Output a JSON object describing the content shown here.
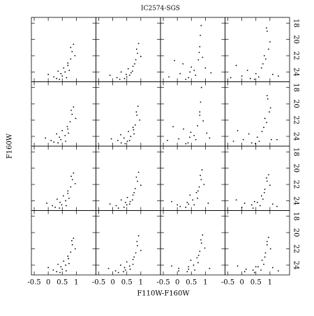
{
  "figure": {
    "title": "IC2574-SGS",
    "x_label": "F110W-F160W",
    "y_label": "F160W"
  },
  "chart_data": [
    {
      "type": "scatter",
      "xlim": [
        -0.6,
        1.7
      ],
      "ylim": [
        17.3,
        25.2
      ],
      "xticks": [
        -0.5,
        0,
        0.5,
        1
      ],
      "yticks": [
        18,
        20,
        22,
        24
      ],
      "color": "#000000",
      "x": [
        0.3,
        0.5,
        0.6,
        0.7,
        0.8,
        0.85,
        0.9,
        0.75,
        0.4,
        0.2,
        0.0,
        0.65,
        0.55,
        0.95,
        0.7,
        0.45,
        0.8,
        0.35
      ],
      "y": [
        24.8,
        24.5,
        24.0,
        23.2,
        22.4,
        21.5,
        20.6,
        23.8,
        24.9,
        24.6,
        24.3,
        24.7,
        23.5,
        22.0,
        22.9,
        24.2,
        21.0,
        23.9
      ]
    },
    {
      "type": "scatter",
      "xlim": [
        -0.6,
        1.7
      ],
      "ylim": [
        17.3,
        25.2
      ],
      "xticks": [
        -0.5,
        0,
        0.5,
        1
      ],
      "yticks": [
        18,
        20,
        22,
        24
      ],
      "color": "#000000",
      "x": [
        0.25,
        0.5,
        0.65,
        0.72,
        0.82,
        0.88,
        0.92,
        0.7,
        0.42,
        0.15,
        -0.1,
        0.6,
        0.55,
        1.0,
        0.78,
        0.48,
        0.85,
        0.3
      ],
      "y": [
        24.9,
        24.6,
        24.1,
        23.3,
        22.5,
        21.7,
        20.5,
        23.9,
        24.8,
        24.7,
        24.4,
        24.4,
        23.6,
        22.1,
        23.0,
        24.3,
        21.2,
        24.0
      ]
    },
    {
      "type": "scatter",
      "xlim": [
        -0.6,
        1.7
      ],
      "ylim": [
        17.3,
        25.2
      ],
      "xticks": [
        -0.5,
        0,
        0.5,
        1
      ],
      "yticks": [
        18,
        20,
        22,
        24
      ],
      "color": "#000000",
      "x": [
        -0.3,
        0.1,
        0.4,
        0.6,
        0.75,
        0.8,
        0.82,
        0.85,
        0.5,
        0.2,
        -0.1,
        0.65,
        0.3,
        1.0,
        0.9,
        0.45,
        0.78,
        1.2
      ],
      "y": [
        24.6,
        24.2,
        24.7,
        23.8,
        22.5,
        20.9,
        19.5,
        18.3,
        23.4,
        23.0,
        22.6,
        24.4,
        24.9,
        23.5,
        22.2,
        24.0,
        21.6,
        24.1
      ]
    },
    {
      "type": "scatter",
      "xlim": [
        -0.6,
        1.7
      ],
      "ylim": [
        17.3,
        25.2
      ],
      "xticks": [
        -0.5,
        0,
        0.5,
        1
      ],
      "yticks": [
        18,
        20,
        22,
        24
      ],
      "color": "#000000",
      "x": [
        -0.4,
        0.0,
        0.3,
        0.5,
        0.7,
        0.85,
        0.95,
        0.9,
        0.6,
        0.2,
        -0.2,
        0.75,
        1.1,
        1.0,
        0.8,
        0.45,
        0.88,
        1.3
      ],
      "y": [
        24.7,
        24.5,
        24.8,
        24.2,
        23.5,
        22.4,
        21.2,
        19.0,
        24.6,
        23.8,
        23.2,
        23.0,
        24.3,
        20.3,
        22.0,
        24.9,
        18.6,
        24.5
      ]
    },
    {
      "type": "scatter",
      "xlim": [
        -0.6,
        1.7
      ],
      "ylim": [
        17.3,
        25.2
      ],
      "xticks": [
        -0.5,
        0,
        0.5,
        1
      ],
      "yticks": [
        18,
        20,
        22,
        24
      ],
      "color": "#000000",
      "x": [
        0.2,
        0.45,
        0.6,
        0.7,
        0.78,
        0.85,
        0.9,
        0.72,
        0.35,
        0.1,
        -0.1,
        0.62,
        0.5,
        0.98,
        0.68,
        0.4,
        0.82,
        0.3
      ],
      "y": [
        24.7,
        24.4,
        23.9,
        23.1,
        22.2,
        21.3,
        20.4,
        23.6,
        24.8,
        24.5,
        24.2,
        24.6,
        23.3,
        21.8,
        22.8,
        24.1,
        20.8,
        23.7
      ]
    },
    {
      "type": "scatter",
      "xlim": [
        -0.6,
        1.7
      ],
      "ylim": [
        17.3,
        25.2
      ],
      "xticks": [
        -0.5,
        0,
        0.5,
        1
      ],
      "yticks": [
        18,
        20,
        22,
        24
      ],
      "color": "#000000",
      "x": [
        0.3,
        0.52,
        0.64,
        0.74,
        0.8,
        0.86,
        0.9,
        0.76,
        0.44,
        0.18,
        -0.05,
        0.6,
        0.56,
        0.96,
        0.72,
        0.4,
        0.84,
        0.28
      ],
      "y": [
        24.8,
        24.6,
        24.0,
        23.2,
        22.6,
        21.4,
        20.3,
        23.7,
        24.9,
        24.5,
        24.3,
        24.5,
        23.4,
        22.0,
        22.9,
        24.2,
        21.0,
        23.8
      ]
    },
    {
      "type": "scatter",
      "xlim": [
        -0.6,
        1.7
      ],
      "ylim": [
        17.3,
        25.2
      ],
      "xticks": [
        -0.5,
        0,
        0.5,
        1
      ],
      "yticks": [
        18,
        20,
        22,
        24
      ],
      "color": "#000000",
      "x": [
        -0.35,
        0.05,
        0.38,
        0.6,
        0.72,
        0.8,
        0.83,
        0.86,
        0.48,
        0.22,
        -0.15,
        0.66,
        0.3,
        1.05,
        0.92,
        0.44,
        0.8,
        1.15
      ],
      "y": [
        24.5,
        24.3,
        24.8,
        23.9,
        22.7,
        21.0,
        19.8,
        18.0,
        23.5,
        23.1,
        22.8,
        24.4,
        24.9,
        23.6,
        22.1,
        24.1,
        21.4,
        24.2
      ]
    },
    {
      "type": "scatter",
      "xlim": [
        -0.6,
        1.7
      ],
      "ylim": [
        17.3,
        25.2
      ],
      "xticks": [
        -0.5,
        0,
        0.5,
        1
      ],
      "yticks": [
        18,
        20,
        22,
        24
      ],
      "color": "#000000",
      "x": [
        -0.3,
        0.05,
        0.35,
        0.55,
        0.72,
        0.88,
        0.98,
        0.92,
        0.62,
        0.25,
        -0.15,
        0.78,
        1.05,
        1.02,
        0.82,
        0.48,
        0.9,
        1.25
      ],
      "y": [
        24.6,
        24.4,
        24.8,
        24.1,
        23.4,
        22.3,
        21.0,
        19.4,
        24.6,
        23.7,
        23.3,
        22.9,
        24.4,
        20.5,
        21.8,
        24.9,
        19.0,
        24.4
      ]
    },
    {
      "type": "scatter",
      "xlim": [
        -0.6,
        1.7
      ],
      "ylim": [
        17.3,
        25.2
      ],
      "xticks": [
        -0.5,
        0,
        0.5,
        1
      ],
      "yticks": [
        18,
        20,
        22,
        24
      ],
      "color": "#000000",
      "x": [
        0.25,
        0.48,
        0.62,
        0.7,
        0.8,
        0.86,
        0.9,
        0.74,
        0.4,
        0.15,
        -0.05,
        0.64,
        0.54,
        0.96,
        0.7,
        0.42,
        0.82,
        0.32
      ],
      "y": [
        24.8,
        24.5,
        24.0,
        23.1,
        22.3,
        21.4,
        20.6,
        23.7,
        24.9,
        24.6,
        24.3,
        24.6,
        23.4,
        21.9,
        22.8,
        24.2,
        21.0,
        23.8
      ]
    },
    {
      "type": "scatter",
      "xlim": [
        -0.6,
        1.7
      ],
      "ylim": [
        17.3,
        25.2
      ],
      "xticks": [
        -0.5,
        0,
        0.5,
        1
      ],
      "yticks": [
        18,
        20,
        22,
        24
      ],
      "color": "#000000",
      "x": [
        0.2,
        0.5,
        0.62,
        0.72,
        0.8,
        0.88,
        0.92,
        0.7,
        0.4,
        0.12,
        -0.1,
        0.6,
        0.52,
        1.0,
        0.76,
        0.45,
        0.84,
        0.3
      ],
      "y": [
        24.9,
        24.5,
        24.1,
        23.3,
        22.5,
        21.6,
        20.5,
        23.9,
        24.8,
        24.6,
        24.4,
        24.4,
        23.6,
        22.1,
        23.0,
        24.2,
        21.1,
        23.9
      ]
    },
    {
      "type": "scatter",
      "xlim": [
        -0.6,
        1.7
      ],
      "ylim": [
        17.3,
        25.2
      ],
      "xticks": [
        -0.5,
        0,
        0.5,
        1
      ],
      "yticks": [
        18,
        20,
        22,
        24
      ],
      "color": "#000000",
      "x": [
        0.1,
        0.4,
        0.55,
        0.68,
        0.78,
        0.85,
        0.88,
        0.72,
        0.3,
        0.0,
        -0.2,
        0.6,
        0.45,
        0.95,
        0.74,
        0.35,
        0.82,
        1.1
      ],
      "y": [
        24.7,
        24.4,
        23.9,
        23.0,
        22.3,
        21.4,
        20.2,
        23.7,
        24.8,
        24.5,
        24.1,
        24.5,
        23.3,
        22.0,
        22.8,
        24.2,
        20.9,
        24.3
      ]
    },
    {
      "type": "scatter",
      "xlim": [
        -0.6,
        1.7
      ],
      "ylim": [
        17.3,
        25.2
      ],
      "xticks": [
        -0.5,
        0,
        0.5,
        1
      ],
      "yticks": [
        18,
        20,
        22,
        24
      ],
      "color": "#000000",
      "x": [
        0.0,
        0.35,
        0.55,
        0.7,
        0.82,
        0.9,
        0.95,
        0.75,
        0.4,
        0.1,
        -0.2,
        0.65,
        1.1,
        1.0,
        0.8,
        0.45,
        0.88,
        1.25
      ],
      "y": [
        24.8,
        24.5,
        24.2,
        23.4,
        22.6,
        21.6,
        20.8,
        23.8,
        24.9,
        24.3,
        23.9,
        24.6,
        24.4,
        22.1,
        23.0,
        24.1,
        21.2,
        24.7
      ]
    },
    {
      "type": "scatter",
      "xlim": [
        -0.6,
        1.7
      ],
      "ylim": [
        17.3,
        25.2
      ],
      "xticks": [
        -0.5,
        0,
        0.5,
        1
      ],
      "yticks": [
        18,
        20,
        22,
        24
      ],
      "color": "#000000",
      "x": [
        0.3,
        0.5,
        0.62,
        0.72,
        0.8,
        0.86,
        0.9,
        0.74,
        0.42,
        0.18,
        0.0,
        0.64,
        0.55,
        0.96,
        0.7,
        0.45,
        0.84,
        0.35
      ],
      "y": [
        24.8,
        24.5,
        24.0,
        23.2,
        22.4,
        21.5,
        20.7,
        23.8,
        24.9,
        24.6,
        24.3,
        24.7,
        23.5,
        22.0,
        22.9,
        24.2,
        21.0,
        23.9
      ]
    },
    {
      "type": "scatter",
      "xlim": [
        -0.6,
        1.7
      ],
      "ylim": [
        17.3,
        25.2
      ],
      "xticks": [
        -0.5,
        0,
        0.5,
        1
      ],
      "yticks": [
        18,
        20,
        22,
        24
      ],
      "color": "#000000",
      "x": [
        0.2,
        0.45,
        0.6,
        0.72,
        0.82,
        0.88,
        0.92,
        0.72,
        0.38,
        0.1,
        -0.15,
        0.62,
        0.5,
        1.0,
        0.76,
        0.42,
        0.86,
        0.28
      ],
      "y": [
        24.9,
        24.6,
        24.1,
        23.3,
        22.5,
        21.6,
        20.4,
        23.9,
        24.8,
        24.7,
        24.4,
        24.5,
        23.6,
        22.2,
        23.0,
        24.3,
        21.1,
        24.0
      ]
    },
    {
      "type": "scatter",
      "xlim": [
        -0.6,
        1.7
      ],
      "ylim": [
        17.3,
        25.2
      ],
      "xticks": [
        -0.5,
        0,
        0.5,
        1
      ],
      "yticks": [
        18,
        20,
        22,
        24
      ],
      "color": "#000000",
      "x": [
        0.05,
        0.4,
        0.58,
        0.7,
        0.8,
        0.86,
        0.9,
        0.74,
        0.35,
        0.05,
        -0.2,
        0.62,
        0.48,
        0.98,
        0.76,
        0.4,
        0.84,
        1.15
      ],
      "y": [
        24.7,
        24.5,
        24.0,
        23.1,
        22.3,
        21.3,
        20.3,
        23.7,
        24.8,
        24.4,
        24.1,
        24.6,
        23.4,
        21.9,
        22.8,
        24.2,
        20.9,
        24.4
      ]
    },
    {
      "type": "scatter",
      "xlim": [
        -0.6,
        1.7
      ],
      "ylim": [
        17.3,
        25.2
      ],
      "xticks": [
        -0.5,
        0,
        0.5,
        1
      ],
      "yticks": [
        18,
        20,
        22,
        24
      ],
      "color": "#000000",
      "x": [
        0.1,
        0.4,
        0.58,
        0.72,
        0.84,
        0.9,
        0.95,
        0.78,
        0.45,
        0.15,
        -0.15,
        0.68,
        1.1,
        1.02,
        0.82,
        0.5,
        0.9,
        1.3
      ],
      "y": [
        24.8,
        24.6,
        24.2,
        23.4,
        22.5,
        21.5,
        20.6,
        23.9,
        24.9,
        24.5,
        24.1,
        24.6,
        24.3,
        22.0,
        23.0,
        24.2,
        21.1,
        24.7
      ]
    }
  ]
}
